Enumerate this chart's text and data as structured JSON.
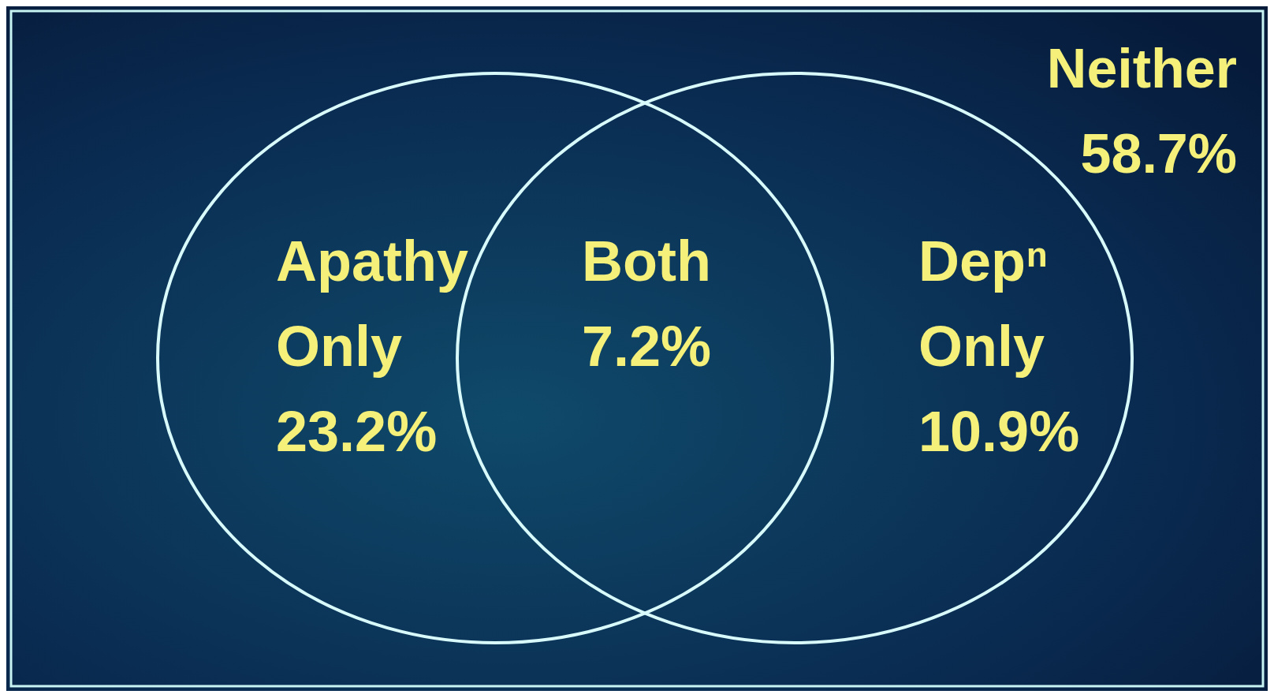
{
  "chart_data": {
    "type": "other",
    "categories": [
      "Apathy Only",
      "Both",
      "Depⁿ Only",
      "Neither"
    ],
    "values": [
      23.2,
      7.2,
      10.9,
      58.7
    ],
    "value_labels": [
      "23.2%",
      "7.2%",
      "10.9%",
      "58.7%"
    ]
  }
}
